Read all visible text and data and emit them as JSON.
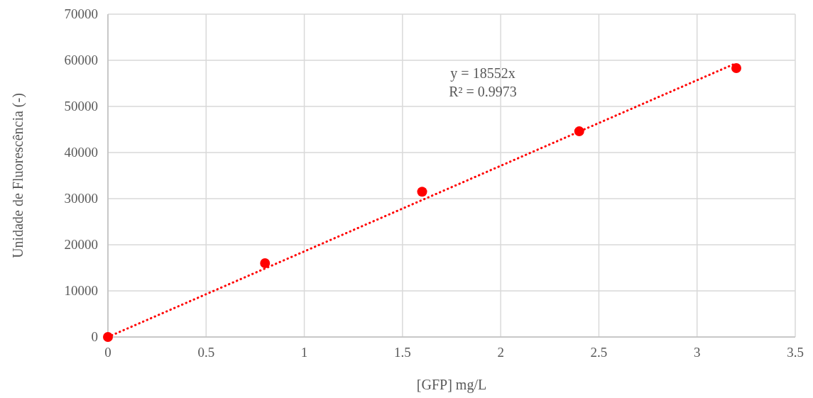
{
  "chart_data": {
    "type": "scatter",
    "xlabel": "[GFP] mg/L",
    "ylabel": "Unidade de Fluorescência (-)",
    "x": [
      0,
      0.8,
      1.6,
      2.4,
      3.2
    ],
    "series": [
      {
        "color": "#ff0000",
        "values": [
          0,
          16000,
          31500,
          44600,
          58300
        ],
        "marker": "circle"
      },
      {
        "type": "line",
        "color": "#ff0000",
        "x": [
          0,
          3.2
        ],
        "values": [
          0,
          59400
        ],
        "line_style": "dotted",
        "marker": "none"
      }
    ],
    "annotations": [
      "y = 18552x",
      "R² = 0.9973"
    ],
    "xlim": [
      0,
      3.5
    ],
    "xticks": [
      0,
      0.5,
      1,
      1.5,
      2,
      2.5,
      3,
      3.5
    ],
    "ylim": [
      0,
      70000
    ],
    "yticks": [
      0,
      10000,
      20000,
      30000,
      40000,
      50000,
      60000,
      70000
    ],
    "grid": true
  }
}
